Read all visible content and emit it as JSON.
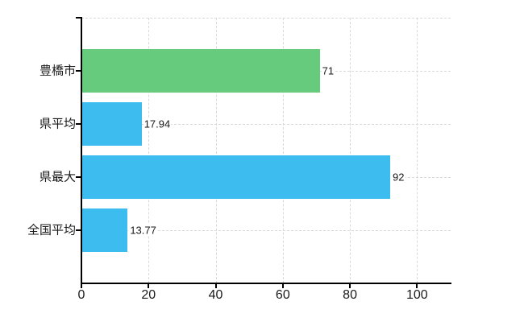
{
  "chart_data": {
    "type": "bar",
    "orientation": "horizontal",
    "title": "",
    "categories": [
      "豊橋市",
      "県平均",
      "県最大",
      "全国平均"
    ],
    "values": [
      71,
      17.94,
      92,
      13.77
    ],
    "value_labels": [
      "71",
      "17.94",
      "92",
      "13.77"
    ],
    "series": [
      {
        "name": "",
        "values": [
          71,
          17.94,
          92,
          13.77
        ]
      }
    ],
    "bar_colors": [
      "#67cb7d",
      "#3dbdef",
      "#3dbdef",
      "#3dbdef"
    ],
    "x_ticks": [
      0,
      20,
      40,
      60,
      80,
      100
    ],
    "x_tick_labels": [
      "0",
      "20",
      "40",
      "60",
      "80",
      "100"
    ],
    "xlim": [
      0,
      110
    ],
    "xlabel": "",
    "ylabel": "",
    "legend": null,
    "grid": {
      "vertical": true,
      "horizontal": true,
      "style": "dashed",
      "color": "#d9d9d9"
    },
    "axis_color": "#000000",
    "text_color": "#1a1a1a",
    "background": "#ffffff"
  }
}
